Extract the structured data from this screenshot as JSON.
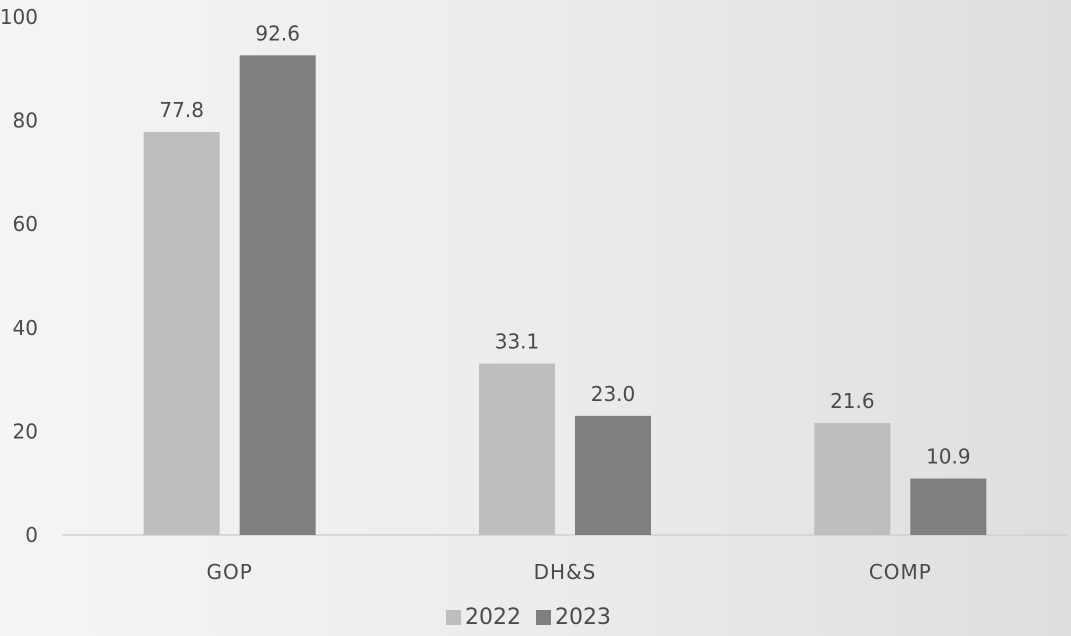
{
  "chart_data": {
    "type": "bar",
    "categories": [
      "GOP",
      "DH&S",
      "COMP"
    ],
    "series": [
      {
        "name": "2022",
        "values": [
          77.8,
          33.1,
          21.6
        ],
        "labels": [
          "77.8",
          "33.1",
          "21.6"
        ],
        "color": "#bebebe"
      },
      {
        "name": "2023",
        "values": [
          92.6,
          23.0,
          10.9
        ],
        "labels": [
          "92.6",
          "23.0",
          "10.9"
        ],
        "color": "#7f7f7f"
      }
    ],
    "ylim": [
      0,
      100
    ],
    "yticks": [
      "0",
      "20",
      "40",
      "60",
      "80",
      "100"
    ],
    "grid": false,
    "legend_position": "bottom",
    "title": "",
    "xlabel": "",
    "ylabel": ""
  }
}
